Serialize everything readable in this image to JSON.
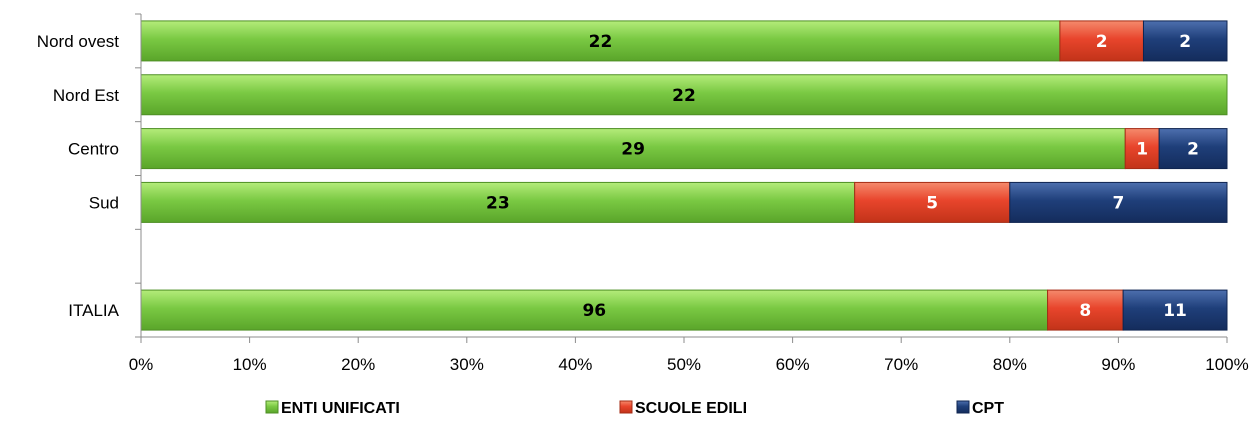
{
  "chart_data": {
    "type": "bar",
    "orientation": "horizontal",
    "stacked": "percent",
    "categories": [
      "Nord ovest",
      "Nord Est",
      "Centro",
      "Sud",
      "",
      "ITALIA"
    ],
    "series": [
      {
        "name": "ENTI UNIFICATI",
        "values": [
          22,
          22,
          29,
          23,
          null,
          96
        ],
        "color": "#7ac943",
        "label_color": "#000000"
      },
      {
        "name": "SCUOLE EDILI",
        "values": [
          2,
          0,
          1,
          5,
          null,
          8
        ],
        "color": "#e8452c",
        "label_color": "#ffffff"
      },
      {
        "name": "CPT",
        "values": [
          2,
          0,
          2,
          7,
          null,
          11
        ],
        "color": "#1f3f7a",
        "label_color": "#ffffff"
      }
    ],
    "xlim": [
      0,
      100
    ],
    "xticks": [
      "0%",
      "10%",
      "20%",
      "30%",
      "40%",
      "50%",
      "60%",
      "70%",
      "80%",
      "90%",
      "100%"
    ],
    "grid": false,
    "legend_position": "bottom"
  }
}
